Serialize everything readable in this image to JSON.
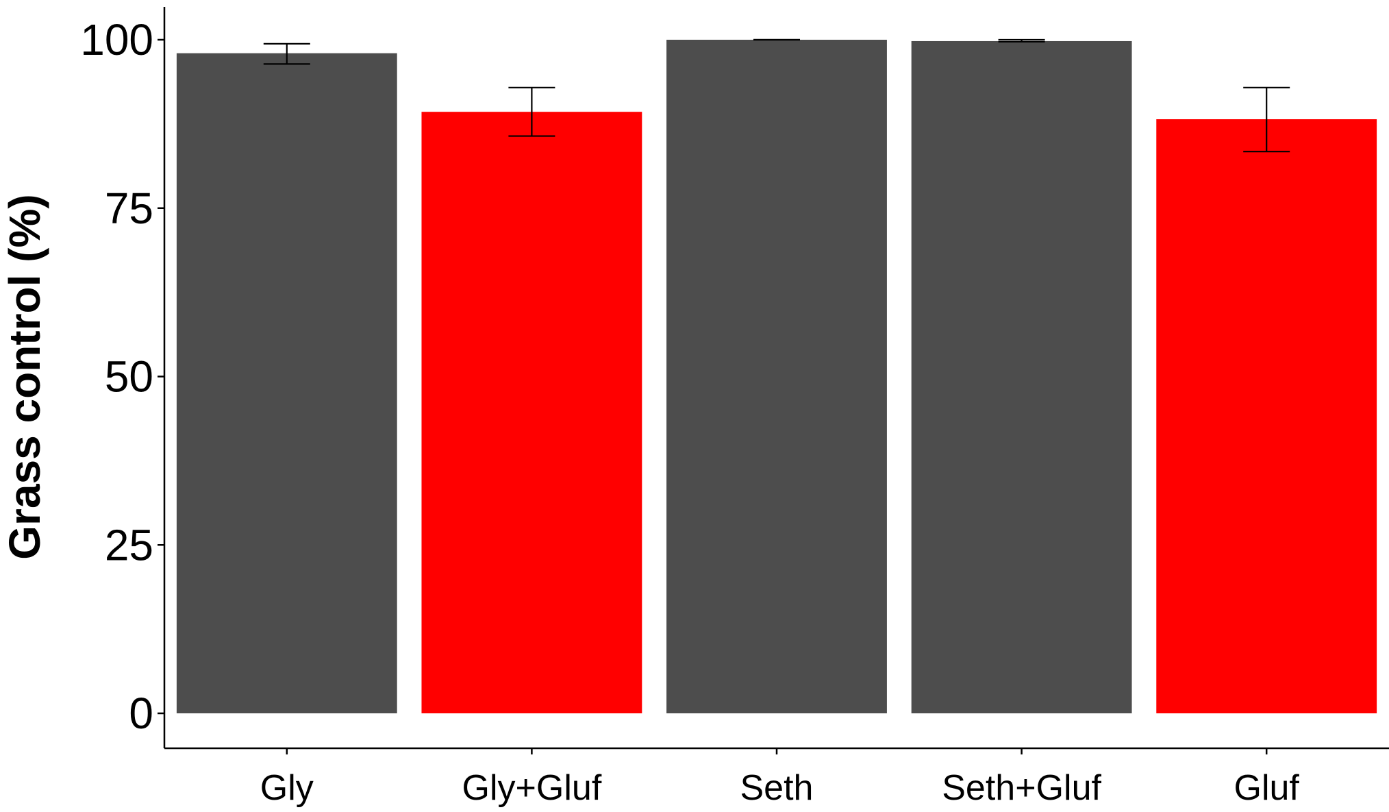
{
  "chart_data": {
    "type": "bar",
    "title": "",
    "xlabel": "",
    "ylabel": "Grass control (%)",
    "ylim": [
      0,
      105
    ],
    "yticks": [
      0,
      25,
      50,
      75,
      100
    ],
    "ytick_labels": [
      "0",
      "25",
      "50",
      "75",
      "100"
    ],
    "grid": false,
    "legend": "none",
    "categories": [
      "Gly",
      "Gly+Gluf",
      "Seth",
      "Seth+Gluf",
      "Gluf"
    ],
    "values": [
      98,
      89.3,
      100,
      99.8,
      88.2
    ],
    "error_low": [
      96.4,
      85.7,
      100,
      99.7,
      83.4
    ],
    "error_high": [
      99.4,
      92.9,
      100,
      100,
      92.9
    ],
    "colors": [
      "#4d4d4d",
      "#ff0000",
      "#4d4d4d",
      "#4d4d4d",
      "#ff0000"
    ]
  }
}
